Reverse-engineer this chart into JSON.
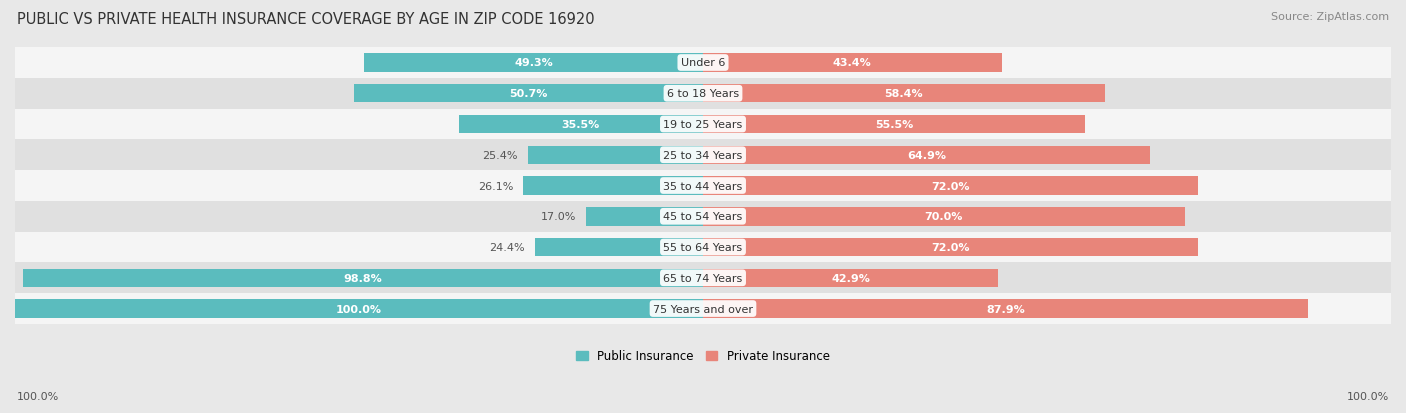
{
  "title": "PUBLIC VS PRIVATE HEALTH INSURANCE COVERAGE BY AGE IN ZIP CODE 16920",
  "source": "Source: ZipAtlas.com",
  "categories": [
    "Under 6",
    "6 to 18 Years",
    "19 to 25 Years",
    "25 to 34 Years",
    "35 to 44 Years",
    "45 to 54 Years",
    "55 to 64 Years",
    "65 to 74 Years",
    "75 Years and over"
  ],
  "public_values": [
    49.3,
    50.7,
    35.5,
    25.4,
    26.1,
    17.0,
    24.4,
    98.8,
    100.0
  ],
  "private_values": [
    43.4,
    58.4,
    55.5,
    64.9,
    72.0,
    70.0,
    72.0,
    42.9,
    87.9
  ],
  "public_color": "#5bbcbe",
  "private_color": "#e8857a",
  "bg_color": "#e8e8e8",
  "row_bg_even": "#f5f5f5",
  "row_bg_odd": "#e0e0e0",
  "label_color_dark": "#555555",
  "label_color_white": "#ffffff",
  "axis_label_left": "100.0%",
  "axis_label_right": "100.0%",
  "legend_public": "Public Insurance",
  "legend_private": "Private Insurance",
  "title_fontsize": 10.5,
  "source_fontsize": 8,
  "bar_label_fontsize": 8,
  "cat_label_fontsize": 8,
  "axis_tick_fontsize": 8,
  "legend_fontsize": 8.5
}
